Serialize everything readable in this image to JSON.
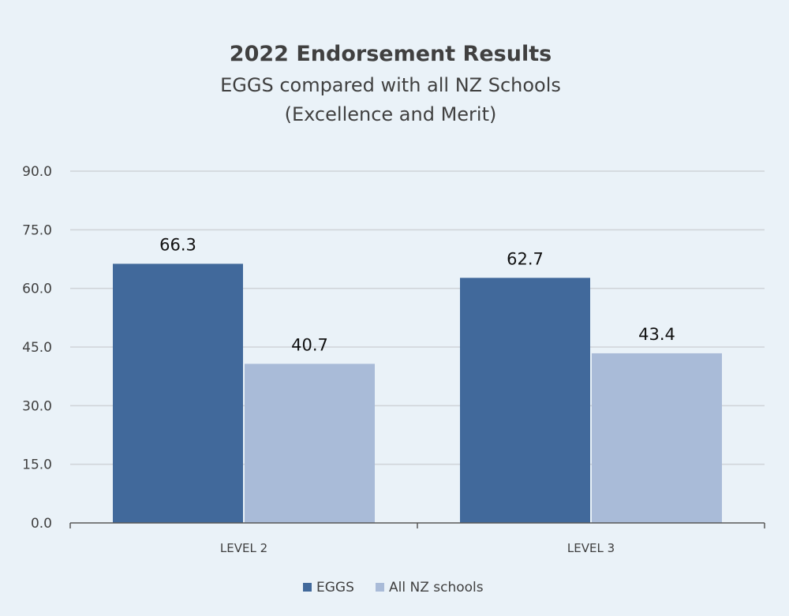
{
  "chart_data": {
    "type": "bar",
    "title": "2022 Endorsement Results",
    "subtitle_lines": [
      "EGGS compared with all NZ Schools",
      "(Excellence and Merit)"
    ],
    "categories": [
      "LEVEL 2",
      "LEVEL 3"
    ],
    "series": [
      {
        "name": "EGGS",
        "values": [
          66.3,
          62.7
        ],
        "color": "#41699b"
      },
      {
        "name": "All NZ schools",
        "values": [
          40.7,
          43.4
        ],
        "color": "#a9bbd8"
      }
    ],
    "data_labels": [
      [
        "66.3",
        "62.7"
      ],
      [
        "40.7",
        "43.4"
      ]
    ],
    "yticks": [
      "0.0",
      "15.0",
      "30.0",
      "45.0",
      "60.0",
      "75.0",
      "90.0"
    ],
    "ylim": [
      0,
      90
    ],
    "grid": true,
    "legend_position": "bottom",
    "colors": {
      "background": "#eaf2f8",
      "gridline": "#cfd3d8",
      "axis": "#595959",
      "text": "#404040"
    }
  }
}
